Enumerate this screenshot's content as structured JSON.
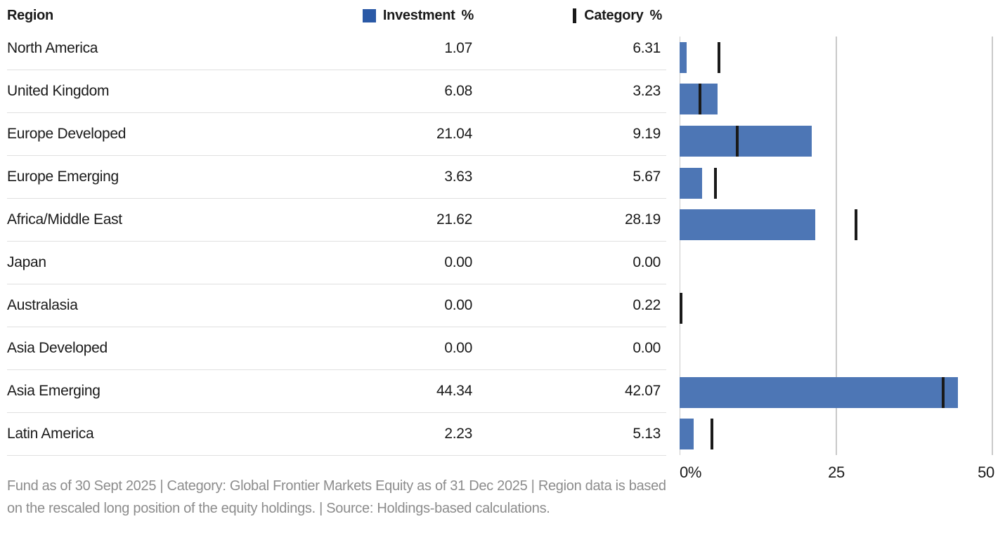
{
  "header": {
    "region_label": "Region",
    "investment_legend": {
      "label": "Investment",
      "unit": "%"
    },
    "category_legend": {
      "label": "Category",
      "unit": "%"
    }
  },
  "chart_data": {
    "type": "bar",
    "orientation": "horizontal",
    "categories": [
      "North America",
      "United Kingdom",
      "Europe Developed",
      "Europe Emerging",
      "Africa/Middle East",
      "Japan",
      "Australasia",
      "Asia Developed",
      "Asia Emerging",
      "Latin America"
    ],
    "series": [
      {
        "name": "Investment %",
        "marker": "bar",
        "values": [
          1.07,
          6.08,
          21.04,
          3.63,
          21.62,
          0.0,
          0.0,
          0.0,
          44.34,
          2.23
        ]
      },
      {
        "name": "Category %",
        "marker": "tick",
        "values": [
          6.31,
          3.23,
          9.19,
          5.67,
          28.19,
          0.0,
          0.22,
          0.0,
          42.07,
          5.13
        ]
      }
    ],
    "xlim": [
      0,
      50
    ],
    "x_tick_labels": [
      "0%",
      "25",
      "50"
    ],
    "grid": "vertical",
    "legend_position": "top"
  },
  "colors": {
    "legend_blue": "#2a59a6",
    "bar_blue": "#4d76b5",
    "category_tick": "#1a1a1a",
    "gridline": "#c9c9c9",
    "row_border": "#e0e0e0",
    "text": "#1a1a1a",
    "footnote": "#8c8c8c"
  },
  "footnote": "Fund as of 30 Sept 2025 | Category: Global Frontier Markets Equity as of 31 Dec 2025 | Region data is based on the rescaled long position of the equity holdings. | Source: Holdings-based calculations."
}
